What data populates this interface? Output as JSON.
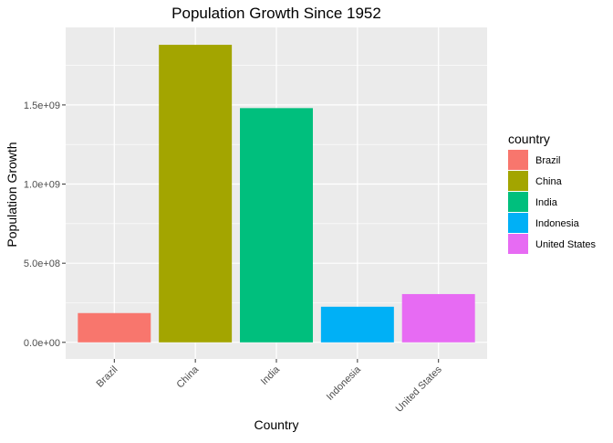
{
  "chart_data": {
    "type": "bar",
    "title": "Population Growth Since 1952",
    "xlabel": "Country",
    "ylabel": "Population Growth",
    "categories": [
      "Brazil",
      "China",
      "India",
      "Indonesia",
      "United States"
    ],
    "values": [
      185000000,
      1880000000,
      1480000000,
      225000000,
      305000000
    ],
    "colors": [
      "#F8766D",
      "#A3A500",
      "#00BF7D",
      "#00B0F6",
      "#E76BF3"
    ],
    "ylim": [
      -105000000,
      1990000000
    ],
    "yticks": [
      0,
      500000000,
      1000000000,
      1500000000
    ],
    "ytick_labels": [
      "0.0e+00",
      "5.0e+08",
      "1.0e+09",
      "1.5e+09"
    ],
    "grid": true,
    "legend": {
      "title": "country",
      "position": "right",
      "entries": [
        "Brazil",
        "China",
        "India",
        "Indonesia",
        "United States"
      ]
    },
    "panel_color": "#ebebeb",
    "grid_color": "#ffffff"
  }
}
